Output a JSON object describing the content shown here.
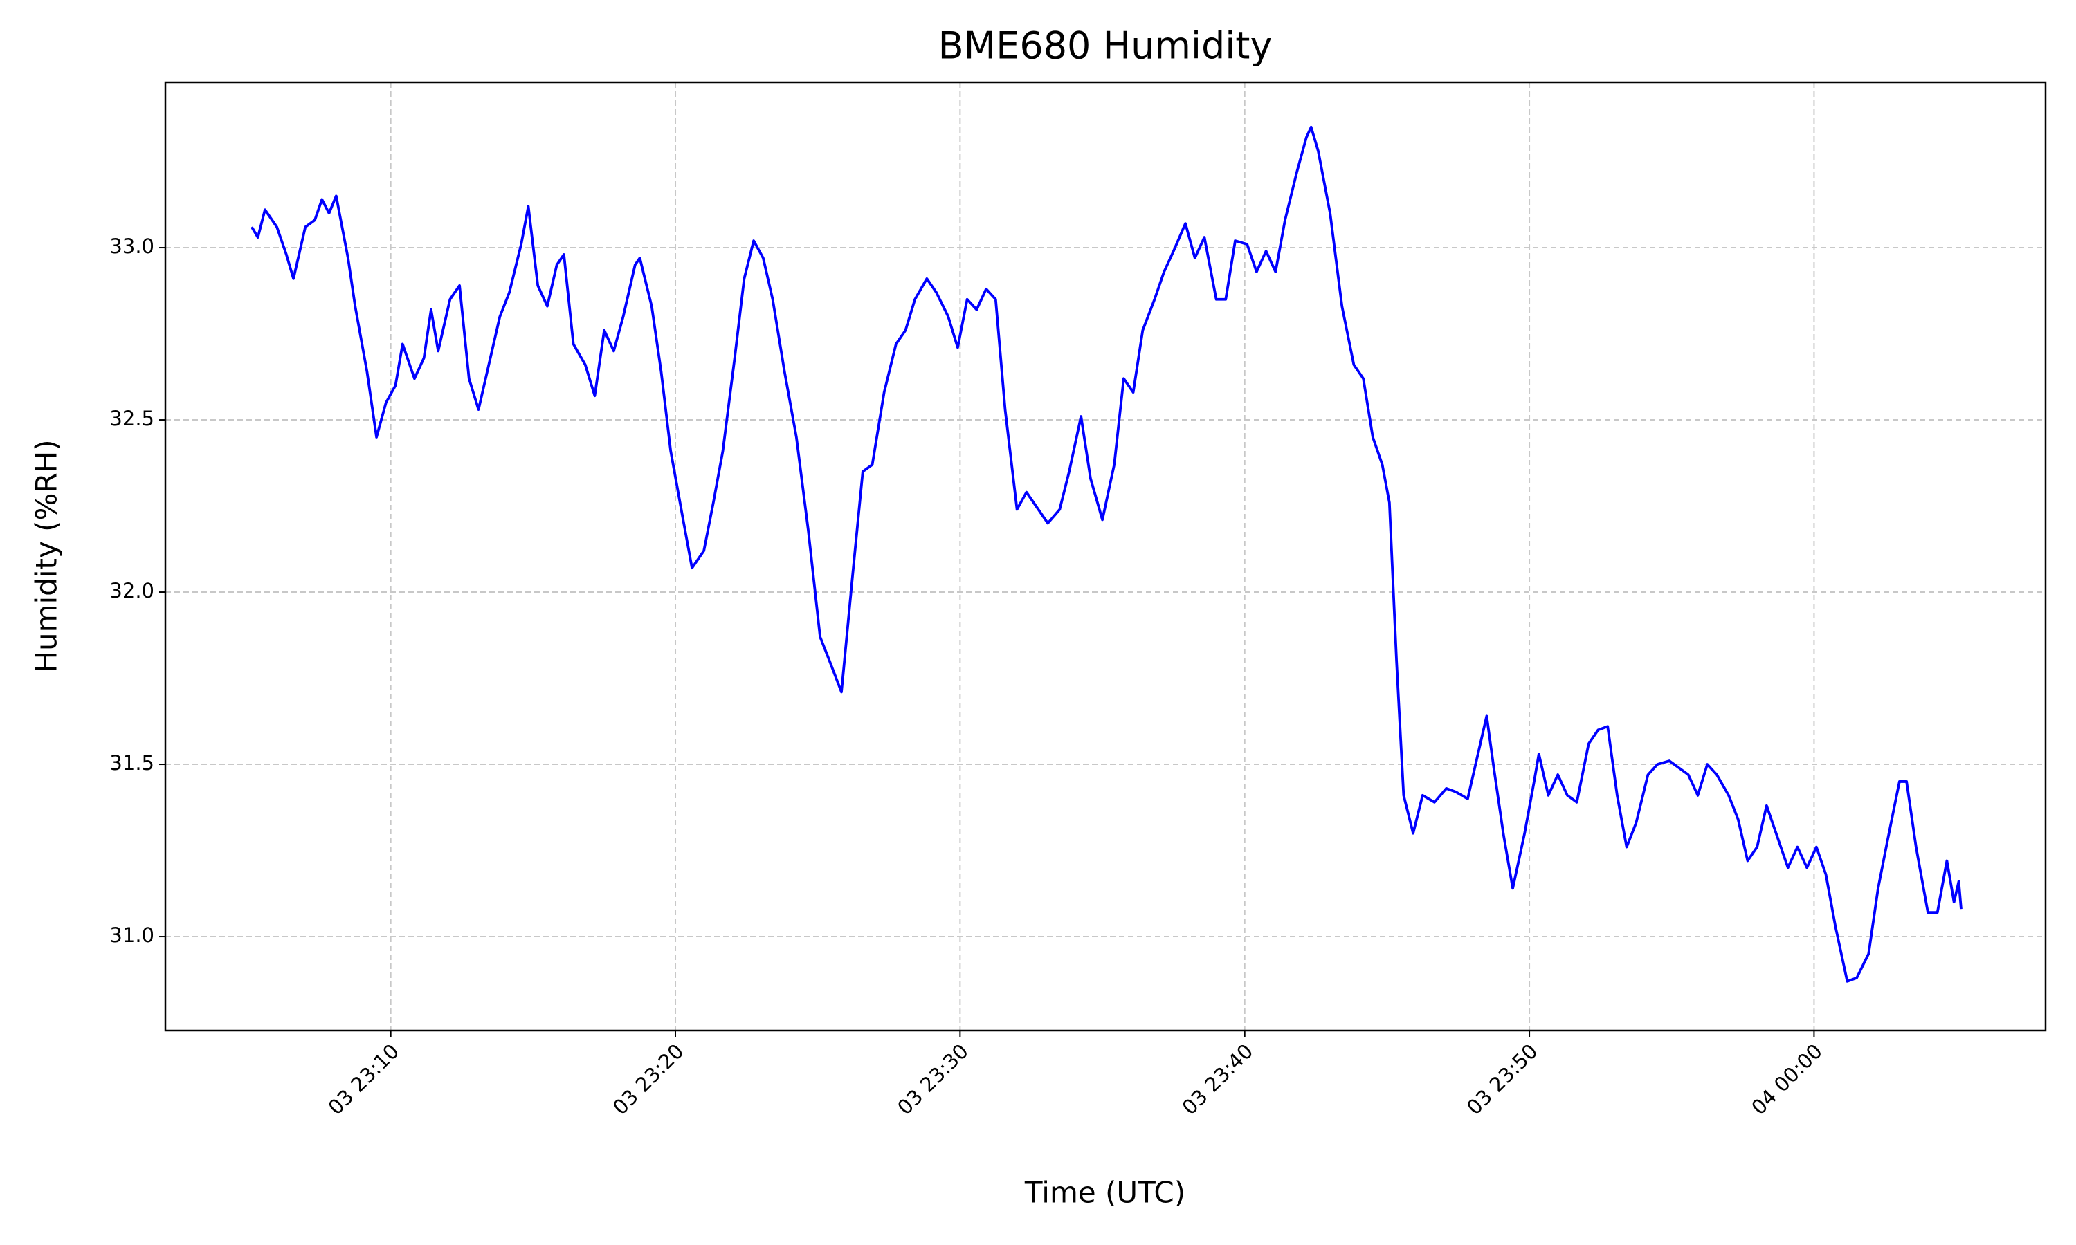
{
  "chart_data": {
    "type": "line",
    "title": "BME680 Humidity",
    "x_label": "Time (UTC)",
    "y_label": "Humidity (%RH)",
    "x": [
      "03 23:05:07",
      "03 23:05:20",
      "03 23:05:35",
      "03 23:06:00",
      "03 23:06:20",
      "03 23:06:35",
      "03 23:07:00",
      "03 23:07:20",
      "03 23:07:35",
      "03 23:07:50",
      "03 23:08:05",
      "03 23:08:30",
      "03 23:08:45",
      "03 23:09:10",
      "03 23:09:30",
      "03 23:09:50",
      "03 23:10:10",
      "03 23:10:25",
      "03 23:10:50",
      "03 23:11:10",
      "03 23:11:25",
      "03 23:11:40",
      "03 23:12:05",
      "03 23:12:25",
      "03 23:12:45",
      "03 23:13:05",
      "03 23:13:25",
      "03 23:13:50",
      "03 23:14:10",
      "03 23:14:35",
      "03 23:14:50",
      "03 23:15:10",
      "03 23:15:30",
      "03 23:15:50",
      "03 23:16:05",
      "03 23:16:25",
      "03 23:16:50",
      "03 23:17:10",
      "03 23:17:30",
      "03 23:17:50",
      "03 23:18:10",
      "03 23:18:35",
      "03 23:18:45",
      "03 23:19:10",
      "03 23:19:30",
      "03 23:19:50",
      "03 23:20:15",
      "03 23:20:35",
      "03 23:21:00",
      "03 23:21:20",
      "03 23:21:40",
      "03 23:22:05",
      "03 23:22:25",
      "03 23:22:45",
      "03 23:23:05",
      "03 23:23:25",
      "03 23:23:50",
      "03 23:24:15",
      "03 23:24:40",
      "03 23:25:05",
      "03 23:25:25",
      "03 23:25:50",
      "03 23:26:15",
      "03 23:26:35",
      "03 23:26:55",
      "03 23:27:20",
      "03 23:27:45",
      "03 23:28:05",
      "03 23:28:25",
      "03 23:28:50",
      "03 23:29:10",
      "03 23:29:35",
      "03 23:29:55",
      "03 23:30:15",
      "03 23:30:35",
      "03 23:30:55",
      "03 23:31:15",
      "03 23:31:35",
      "03 23:32:00",
      "03 23:32:20",
      "03 23:32:45",
      "03 23:33:05",
      "03 23:33:30",
      "03 23:33:50",
      "03 23:34:15",
      "03 23:34:35",
      "03 23:35:00",
      "03 23:35:25",
      "03 23:35:45",
      "03 23:36:05",
      "03 23:36:25",
      "03 23:36:50",
      "03 23:37:10",
      "03 23:37:30",
      "03 23:37:55",
      "03 23:38:15",
      "03 23:38:35",
      "03 23:39:00",
      "03 23:39:20",
      "03 23:39:40",
      "03 23:40:05",
      "03 23:40:25",
      "03 23:40:45",
      "03 23:41:05",
      "03 23:41:25",
      "03 23:41:50",
      "03 23:42:10",
      "03 23:42:20",
      "03 23:42:35",
      "03 23:43:00",
      "03 23:43:25",
      "03 23:43:50",
      "03 23:44:10",
      "03 23:44:30",
      "03 23:44:50",
      "03 23:45:05",
      "03 23:45:20",
      "03 23:45:35",
      "03 23:45:55",
      "03 23:46:15",
      "03 23:46:40",
      "03 23:47:05",
      "03 23:47:25",
      "03 23:47:50",
      "03 23:48:05",
      "03 23:48:20",
      "03 23:48:30",
      "03 23:48:45",
      "03 23:49:05",
      "03 23:49:25",
      "03 23:49:50",
      "03 23:50:10",
      "03 23:50:20",
      "03 23:50:40",
      "03 23:51:00",
      "03 23:51:20",
      "03 23:51:40",
      "03 23:52:05",
      "03 23:52:25",
      "03 23:52:45",
      "03 23:53:05",
      "03 23:53:25",
      "03 23:53:45",
      "03 23:54:10",
      "03 23:54:30",
      "03 23:54:55",
      "03 23:55:15",
      "03 23:55:35",
      "03 23:55:55",
      "03 23:56:15",
      "03 23:56:35",
      "03 23:57:00",
      "03 23:57:20",
      "03 23:57:40",
      "03 23:58:00",
      "03 23:58:20",
      "03 23:58:40",
      "03 23:59:05",
      "03 23:59:25",
      "03 23:59:45",
      "04 00:00:05",
      "04 00:00:25",
      "04 00:00:45",
      "04 00:01:10",
      "04 00:01:30",
      "04 00:01:55",
      "04 00:02:15",
      "04 00:02:35",
      "04 00:03:00",
      "04 00:03:15",
      "04 00:03:35",
      "04 00:04:00",
      "04 00:04:20",
      "04 00:04:40",
      "04 00:04:55",
      "04 00:05:05",
      "04 00:05:10"
    ],
    "series": [
      {
        "color": "#0000ff",
        "values": [
          33.06,
          33.03,
          33.11,
          33.06,
          32.98,
          32.91,
          33.06,
          33.08,
          33.14,
          33.1,
          33.15,
          32.97,
          32.83,
          32.64,
          32.45,
          32.55,
          32.6,
          32.72,
          32.62,
          32.68,
          32.82,
          32.7,
          32.85,
          32.89,
          32.62,
          32.53,
          32.65,
          32.8,
          32.87,
          33.01,
          33.12,
          32.89,
          32.83,
          32.95,
          32.98,
          32.72,
          32.66,
          32.57,
          32.76,
          32.7,
          32.8,
          32.95,
          32.97,
          32.83,
          32.64,
          32.41,
          32.22,
          32.07,
          32.12,
          32.26,
          32.41,
          32.68,
          32.91,
          33.02,
          32.97,
          32.85,
          32.64,
          32.45,
          32.18,
          31.87,
          31.8,
          31.71,
          32.07,
          32.35,
          32.37,
          32.58,
          32.72,
          32.76,
          32.85,
          32.91,
          32.87,
          32.8,
          32.71,
          32.85,
          32.82,
          32.88,
          32.85,
          32.53,
          32.24,
          32.29,
          32.24,
          32.2,
          32.24,
          32.35,
          32.51,
          32.33,
          32.21,
          32.37,
          32.62,
          32.58,
          32.76,
          32.85,
          32.93,
          32.99,
          33.07,
          32.97,
          33.03,
          32.85,
          32.85,
          33.02,
          33.01,
          32.93,
          32.99,
          32.93,
          33.08,
          33.22,
          33.32,
          33.35,
          33.28,
          33.1,
          32.83,
          32.66,
          32.62,
          32.45,
          32.37,
          32.26,
          31.8,
          31.41,
          31.3,
          31.41,
          31.39,
          31.43,
          31.42,
          31.4,
          31.49,
          31.58,
          31.64,
          31.49,
          31.3,
          31.14,
          31.3,
          31.45,
          31.53,
          31.41,
          31.47,
          31.41,
          31.39,
          31.56,
          31.6,
          31.61,
          31.41,
          31.26,
          31.33,
          31.47,
          31.5,
          31.51,
          31.49,
          31.47,
          31.41,
          31.5,
          31.47,
          31.41,
          31.34,
          31.22,
          31.26,
          31.38,
          31.3,
          31.2,
          31.26,
          31.2,
          31.26,
          31.18,
          31.03,
          30.87,
          30.88,
          30.95,
          31.14,
          31.28,
          31.45,
          31.45,
          31.26,
          31.07,
          31.07,
          31.22,
          31.1,
          31.16,
          31.08
        ]
      }
    ],
    "xlim": [
      "03 23:02:05",
      "04 00:08:08"
    ],
    "xticks": [
      "03 23:10",
      "03 23:20",
      "03 23:30",
      "03 23:40",
      "03 23:50",
      "04 00:00"
    ],
    "ylim": [
      30.727,
      33.48
    ],
    "yticks": [
      {
        "value": 31,
        "label": "31.0"
      },
      31.5,
      {
        "value": 32,
        "label": "32.0"
      },
      32.5,
      {
        "value": 33,
        "label": "33.0"
      }
    ],
    "grid": true
  }
}
